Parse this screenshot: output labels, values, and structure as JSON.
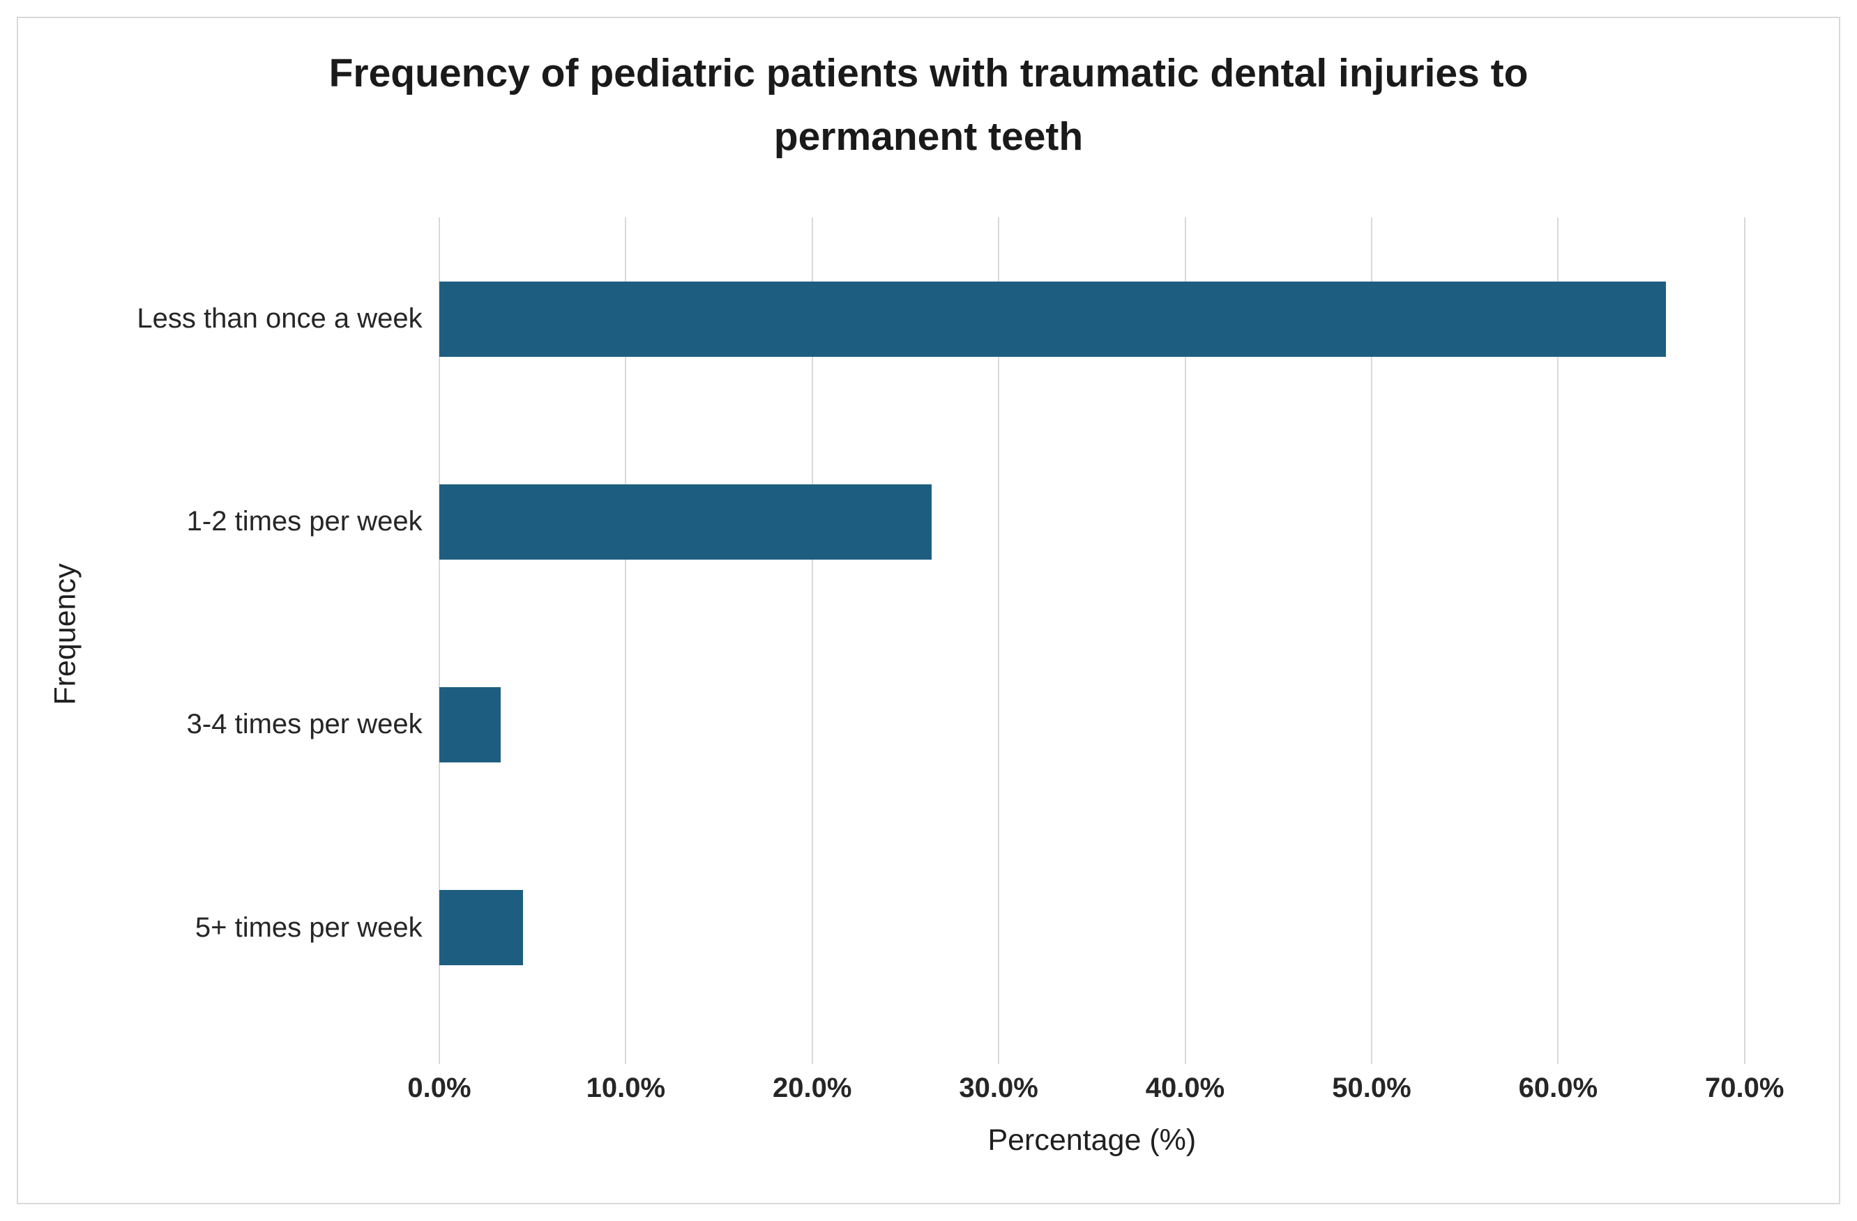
{
  "figure": {
    "title_lines": [
      "Frequency of pediatric patients with traumatic dental injuries to",
      "permanent teeth"
    ]
  },
  "chart_data": {
    "type": "bar",
    "orientation": "horizontal",
    "title": "Frequency of pediatric patients with traumatic dental injuries to permanent teeth",
    "categories": [
      "Less than once a week",
      "1-2 times per week",
      "3-4 times per week",
      "5+ times per week"
    ],
    "values": [
      65.8,
      26.4,
      3.3,
      4.5
    ],
    "xlabel": "Percentage (%)",
    "ylabel": "Frequency",
    "xlim": [
      0,
      70
    ],
    "xtick_values": [
      0,
      10,
      20,
      30,
      40,
      50,
      60,
      70
    ],
    "xtick_labels": [
      "0.0%",
      "10.0%",
      "20.0%",
      "30.0%",
      "40.0%",
      "50.0%",
      "60.0%",
      "70.0%"
    ],
    "grid": "vertical-gridlines-on",
    "legend": "none",
    "bar_color": "#1d5e80",
    "gridline_color": "#d9d9d9",
    "text_color": "#262626"
  }
}
